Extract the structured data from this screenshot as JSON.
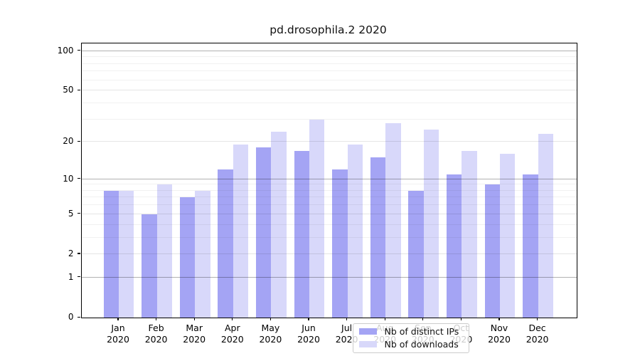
{
  "chart_data": {
    "type": "bar",
    "title": "pd.drosophila.2 2020",
    "scale": "log1p",
    "categories": [
      "Jan",
      "Feb",
      "Mar",
      "Apr",
      "May",
      "Jun",
      "Jul",
      "Aug",
      "Sep",
      "Oct",
      "Nov",
      "Dec"
    ],
    "category_year": "2020",
    "series": [
      {
        "name": "Nb of distinct IPs",
        "color": "#a4a4f4",
        "values": [
          8,
          5,
          7,
          12,
          18,
          17,
          12,
          15,
          8,
          11,
          9,
          11
        ]
      },
      {
        "name": "Nb of downloads",
        "color": "#d8d8fa",
        "values": [
          8,
          9,
          8,
          19,
          24,
          30,
          19,
          28,
          25,
          17,
          16,
          23
        ]
      }
    ],
    "ylim": [
      0,
      115
    ],
    "yticks": [
      0,
      1,
      2,
      5,
      10,
      20,
      50,
      100
    ],
    "grid_major": [
      1,
      10,
      100
    ],
    "grid_labeled": [
      2,
      5,
      20,
      50
    ],
    "grid_minor": [
      3,
      4,
      6,
      7,
      8,
      9,
      30,
      40,
      60,
      70,
      80,
      90
    ],
    "grid": true,
    "legend_position": "lower center",
    "colors": {
      "grid_major": "rgba(0,0,0,0.30)",
      "grid_labeled": "rgba(0,0,0,0.10)",
      "grid_minor": "rgba(0,0,0,0.055)",
      "spine": "#000000",
      "legend_border": "#cccccc"
    }
  }
}
